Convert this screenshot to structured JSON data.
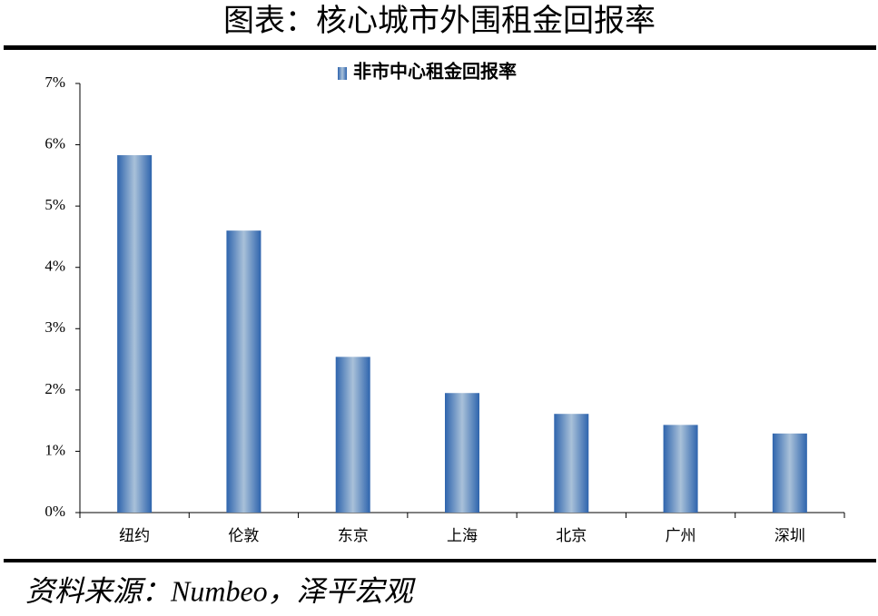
{
  "chart_data": {
    "type": "bar",
    "title": "图表：核心城市外围租金回报率",
    "legend": "非市中心租金回报率",
    "source": "资料来源：Numbeo，泽平宏观",
    "categories": [
      "纽约",
      "伦敦",
      "东京",
      "上海",
      "北京",
      "广州",
      "深圳"
    ],
    "values": [
      5.83,
      4.6,
      2.54,
      1.95,
      1.61,
      1.43,
      1.29
    ],
    "color": "#2e64ad",
    "ylim": [
      0,
      7
    ],
    "yticks": [
      {
        "value": 0,
        "label": "0%"
      },
      {
        "value": 1,
        "label": "1%"
      },
      {
        "value": 2,
        "label": "2%"
      },
      {
        "value": 3,
        "label": "3%"
      },
      {
        "value": 4,
        "label": "4%"
      },
      {
        "value": 5,
        "label": "5%"
      },
      {
        "value": 6,
        "label": "6%"
      },
      {
        "value": 7,
        "label": "7%"
      }
    ]
  }
}
